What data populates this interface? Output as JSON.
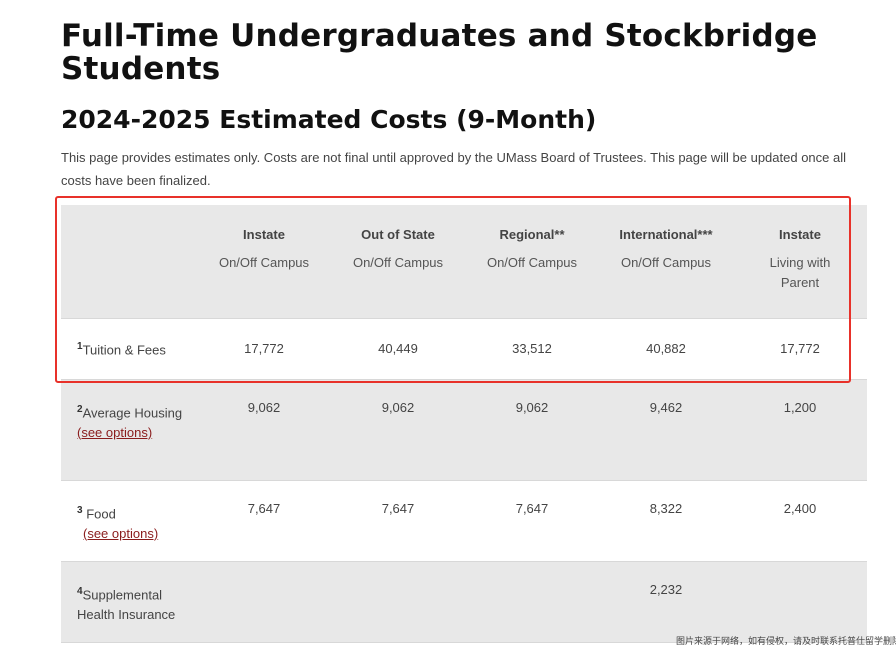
{
  "title": "Full-Time Undergraduates and Stockbridge Students",
  "subtitle": "2024-2025 Estimated Costs (9-Month)",
  "intro": "This page provides estimates only. Costs are not final until approved by the UMass Board of Trustees. This page will be updated once all costs have been finalized.",
  "columns": [
    {
      "title": "Instate",
      "sub": "On/Off Campus"
    },
    {
      "title": "Out of State",
      "sub": "On/Off Campus"
    },
    {
      "title": "Regional**",
      "sub": "On/Off Campus"
    },
    {
      "title": "International***",
      "sub": "On/Off Campus"
    },
    {
      "title": "Instate",
      "sub": "Living with Parent"
    }
  ],
  "rows": [
    {
      "num": "1",
      "label": "Tuition & Fees",
      "link": "",
      "values": [
        "17,772",
        "40,449",
        "33,512",
        "40,882",
        "17,772"
      ]
    },
    {
      "num": "2",
      "label": "Average Housing",
      "link": "(see options)",
      "values": [
        "9,062",
        "9,062",
        "9,062",
        "9,462",
        "1,200"
      ]
    },
    {
      "num": "3",
      "label": "Food",
      "link": "(see options)",
      "values": [
        "7,647",
        "7,647",
        "7,647",
        "8,322",
        "2,400"
      ]
    },
    {
      "num": "4",
      "label": "Supplemental Health Insurance",
      "link": "",
      "values": [
        "",
        "",
        "",
        "2,232",
        ""
      ]
    }
  ],
  "watermark": "图片来源于网络，如有侵权，请及时联系托普仕留学删除",
  "highlight_color": "#e8312a",
  "link_color": "#8a1c1c"
}
